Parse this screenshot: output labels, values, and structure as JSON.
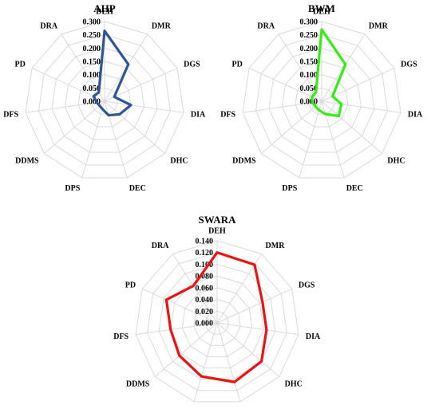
{
  "chart_data": [
    {
      "type": "radar",
      "title": "AHP",
      "categories": [
        "DEH",
        "DMR",
        "DGS",
        "DIA",
        "DHC",
        "DEC",
        "DPS",
        "DDMS",
        "DFS",
        "PD",
        "DRA"
      ],
      "series": [
        {
          "values": [
            0.265,
            0.165,
            0.04,
            0.1,
            0.075,
            0.055,
            0.03,
            0.025,
            0.03,
            0.045,
            0.04
          ],
          "color": "#2F5597"
        }
      ],
      "ticks": [
        "0.000",
        "0.050",
        "0.100",
        "0.150",
        "0.200",
        "0.250",
        "0.300"
      ],
      "range": [
        0,
        0.3
      ],
      "grid": true
    },
    {
      "type": "radar",
      "title": "BWM",
      "categories": [
        "DEH",
        "DMR",
        "DGS",
        "DIA",
        "DHC",
        "DEC",
        "DPS",
        "DDMS",
        "DFS",
        "PD",
        "DRA"
      ],
      "series": [
        {
          "values": [
            0.27,
            0.165,
            0.045,
            0.075,
            0.085,
            0.05,
            0.035,
            0.03,
            0.035,
            0.04,
            0.04
          ],
          "color": "#33EE11"
        }
      ],
      "ticks": [
        "0.000",
        "0.050",
        "0.100",
        "0.150",
        "0.200",
        "0.250",
        "0.300"
      ],
      "range": [
        0,
        0.3
      ],
      "grid": true
    },
    {
      "type": "radar",
      "title": "SWARA",
      "categories": [
        "DEH",
        "DMR",
        "DGS",
        "DIA",
        "DHC",
        "DEC",
        "DPS",
        "DDMS",
        "DFS",
        "PD",
        "DRA"
      ],
      "series": [
        {
          "values": [
            0.12,
            0.118,
            0.085,
            0.085,
            0.1,
            0.105,
            0.095,
            0.085,
            0.08,
            0.095,
            0.075
          ],
          "color": "#EE1111"
        }
      ],
      "ticks": [
        "0.000",
        "0.020",
        "0.040",
        "0.060",
        "0.080",
        "0.100",
        "0.120",
        "0.140"
      ],
      "range": [
        0,
        0.14
      ],
      "grid": true
    }
  ]
}
